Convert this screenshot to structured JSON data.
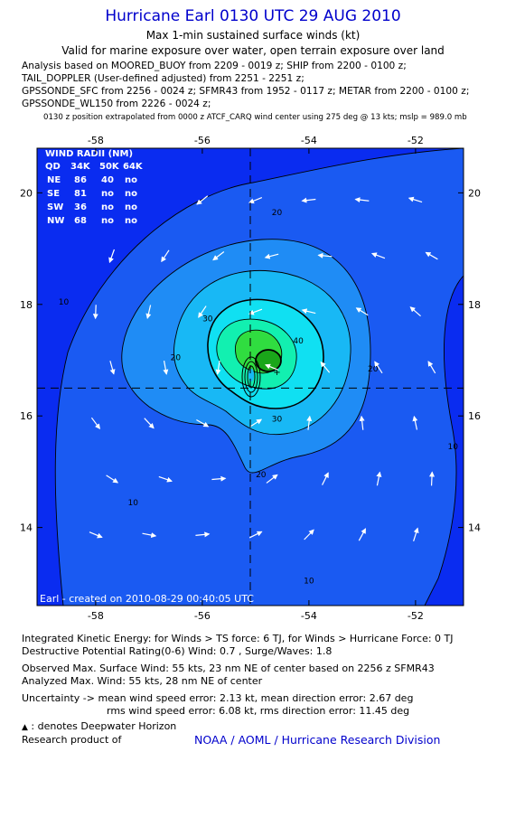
{
  "header": {
    "title": "Hurricane Earl 0130 UTC 29 AUG 2010",
    "subtitle1": "Max 1-min sustained surface winds (kt)",
    "subtitle2": "Valid for marine exposure over water, open terrain exposure over land",
    "lines": [
      "Analysis based on MOORED_BUOY from 2209 - 0019 z; SHIP from 2200 - 0100 z;",
      "TAIL_DOPPLER (User-defined adjusted) from 2251 - 2251 z;",
      "GPSSONDE_SFC from 2256 - 0024 z; SFMR43 from 1952 - 0117 z; METAR from 2200 - 0100 z;",
      "GPSSONDE_WL150 from 2226 - 0024 z;"
    ],
    "note": "0130 z position extrapolated from 0000 z ATCF_CARQ wind center using 275 deg @ 13 kts; mslp = 989.0 mb"
  },
  "wind_radii": {
    "title": "WIND RADII (NM)",
    "columns": [
      "QD",
      "34K",
      "50K",
      "64K"
    ],
    "rows": [
      [
        "NE",
        "86",
        "40",
        "no"
      ],
      [
        "SE",
        "81",
        "no",
        "no"
      ],
      [
        "SW",
        "36",
        "no",
        "no"
      ],
      [
        "NW",
        "68",
        "no",
        "no"
      ]
    ]
  },
  "created": "Earl - created on 2010-08-29 00:40:05 UTC",
  "colors": {
    "title": "#0000cc",
    "fills": [
      "#0a2cf0",
      "#1a5af2",
      "#1f8cf5",
      "#18b8f5",
      "#10e0f2",
      "#12f0b0",
      "#30dd40"
    ]
  },
  "chart_data": {
    "type": "contour",
    "xlabel": "",
    "ylabel": "",
    "xlim": [
      -59.1,
      -51.1
    ],
    "ylim": [
      12.6,
      20.8
    ],
    "x_ticks": [
      -58,
      -56,
      -54,
      -52
    ],
    "y_ticks": [
      14,
      16,
      18,
      20
    ],
    "x_tick_labels": [
      "-58",
      "-56",
      "-54",
      "-52"
    ],
    "y_tick_labels": [
      "14",
      "16",
      "18",
      "20"
    ],
    "center": {
      "lon": -55.1,
      "lat": 16.5
    },
    "max_wind_location": {
      "lon": -54.6,
      "lat": 16.8
    },
    "contour_levels": [
      10,
      20,
      30,
      40,
      50
    ],
    "contour_labels": [
      {
        "text": "10",
        "lon": -58.6,
        "lat": 18.0
      },
      {
        "text": "10",
        "lon": -57.3,
        "lat": 14.4
      },
      {
        "text": "10",
        "lon": -54.0,
        "lat": 13.0
      },
      {
        "text": "10",
        "lon": -51.3,
        "lat": 15.4
      },
      {
        "text": "20",
        "lon": -54.6,
        "lat": 19.6
      },
      {
        "text": "20",
        "lon": -56.5,
        "lat": 17.0
      },
      {
        "text": "20",
        "lon": -52.8,
        "lat": 16.8
      },
      {
        "text": "20",
        "lon": -54.9,
        "lat": 14.9
      },
      {
        "text": "30",
        "lon": -55.9,
        "lat": 17.7
      },
      {
        "text": "30",
        "lon": -54.6,
        "lat": 15.9
      },
      {
        "text": "40",
        "lon": -54.2,
        "lat": 17.3
      }
    ],
    "wind_vectors_lon": [
      -58,
      -57,
      -56,
      -55,
      -54,
      -53,
      -52
    ],
    "wind_vectors_lat": [
      20,
      19,
      18,
      17,
      16,
      15,
      14,
      13
    ]
  }
}
